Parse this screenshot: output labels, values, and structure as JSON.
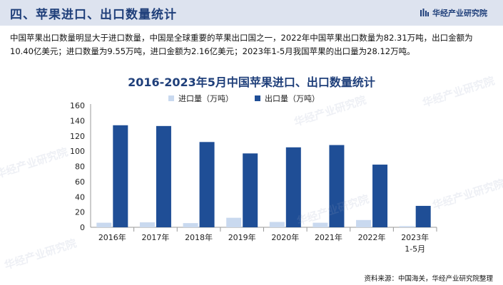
{
  "header": {
    "title": "四、苹果进口、出口数量统计",
    "brand": "华经产业研究院"
  },
  "intro_text": "中国苹果出口数量明显大于进口数量，中国是全球重要的苹果出口国之一，2022年中国苹果出口数量为82.31万吨，出口金额为10.40亿美元；进口数量为9.55万吨，进口金额为2.16亿美元；2023年1-5月我国苹果的出口量为28.12万吨。",
  "source": "资料来源：中国海关，华经产业研究院整理",
  "watermark": "华经产业研究院",
  "colors": {
    "import": "#c9d9ef",
    "export": "#1f4e96",
    "accent": "#1f3f7a"
  },
  "chart_data": {
    "type": "bar",
    "title": "2016-2023年5月中国苹果进口、出口数量统计",
    "categories": [
      "2016年",
      "2017年",
      "2018年",
      "2019年",
      "2020年",
      "2021年",
      "2022年",
      "2023年\n1-5月"
    ],
    "series": [
      {
        "name": "进口量（万吨）",
        "values": [
          6.0,
          6.5,
          5.5,
          12.5,
          7.0,
          6.0,
          9.55,
          1.5
        ]
      },
      {
        "name": "出口量（万吨）",
        "values": [
          134,
          133,
          112,
          97,
          105,
          108,
          82.31,
          28.12
        ]
      }
    ],
    "yticks": [
      0,
      20,
      40,
      60,
      80,
      100,
      120,
      140,
      160
    ],
    "ylim": [
      0,
      160
    ],
    "grid": false,
    "legend": "top-center"
  }
}
